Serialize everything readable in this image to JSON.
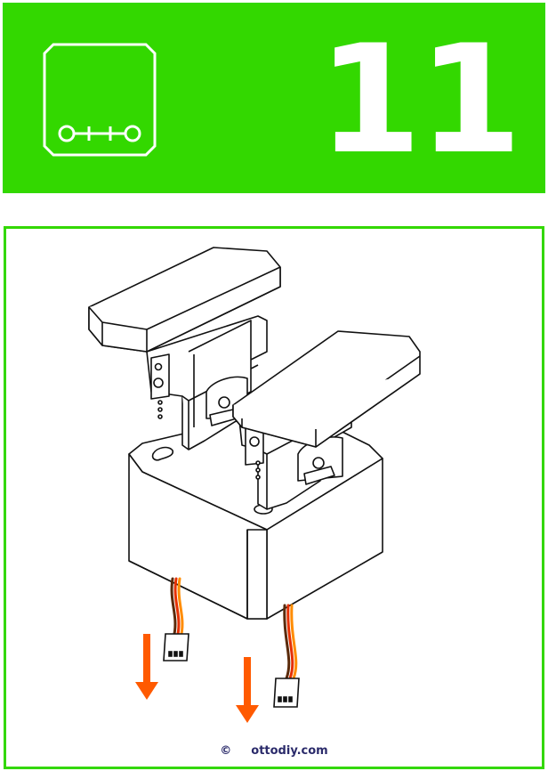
{
  "header": {
    "logo_text": "o++o",
    "step_number": "11"
  },
  "footer": {
    "copyright_symbol": "©",
    "site": "ottodiy.com"
  },
  "colors": {
    "brand_green": "#33d800",
    "arrow_orange": "#ff5a00",
    "wire_orange": "#ff8c00",
    "wire_red": "#e63000",
    "wire_brown": "#5a2a0a",
    "credit_text": "#2a2a6a"
  },
  "icons": [
    "otto-logo-icon",
    "down-arrow-icon"
  ]
}
